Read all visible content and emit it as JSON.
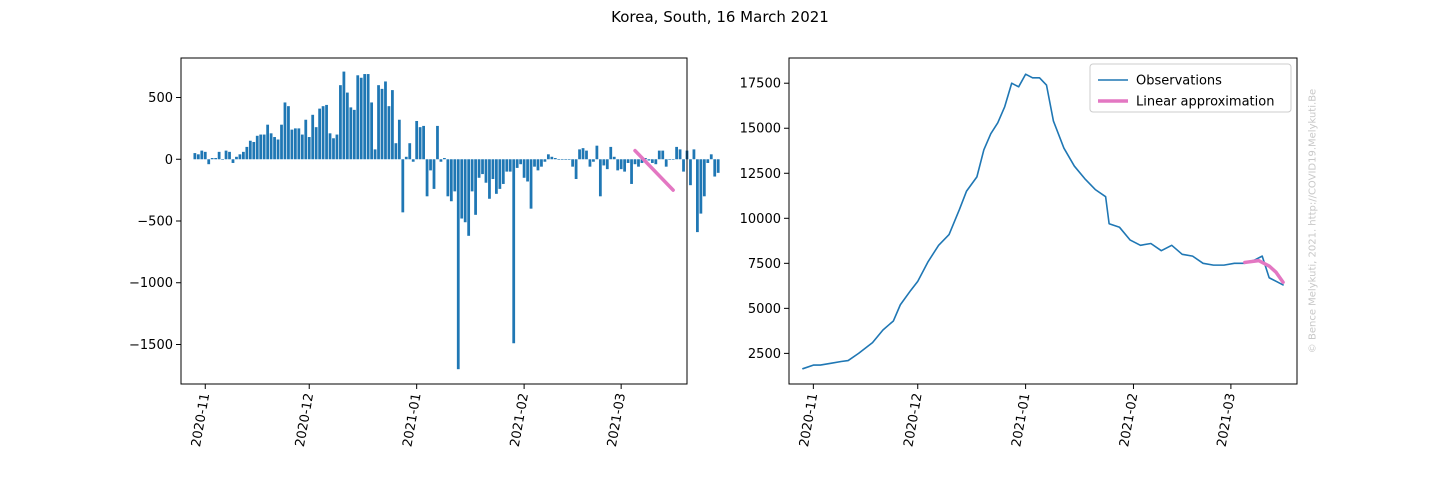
{
  "title": "Korea, South, 16 March 2021",
  "watermark": "© Bence Melykuti, 2021. http://COVID19.Melykuti.Be",
  "colors": {
    "observations": "#1f77b4",
    "approximation": "#e377c2",
    "axis": "#000000"
  },
  "chart_data": [
    {
      "type": "bar",
      "title": "",
      "xlabel": "",
      "ylabel": "",
      "x_start": "2020-10-29",
      "x_end": "2021-03-16",
      "xlim": [
        "2020-10-25",
        "2021-03-20"
      ],
      "ylim": [
        -1820,
        820
      ],
      "yticks": [
        500,
        0,
        -500,
        -1000,
        -1500
      ],
      "xticks": [
        "2020-11",
        "2020-12",
        "2021-01",
        "2021-02",
        "2021-03"
      ],
      "values": [
        50,
        40,
        70,
        60,
        -40,
        10,
        10,
        60,
        0,
        70,
        60,
        -30,
        20,
        40,
        60,
        100,
        150,
        140,
        190,
        200,
        200,
        280,
        210,
        180,
        160,
        280,
        460,
        430,
        240,
        250,
        250,
        200,
        320,
        180,
        360,
        260,
        410,
        430,
        440,
        210,
        170,
        200,
        600,
        710,
        540,
        420,
        400,
        680,
        660,
        690,
        690,
        460,
        80,
        600,
        570,
        630,
        430,
        560,
        130,
        320,
        -430,
        20,
        130,
        -20,
        310,
        260,
        270,
        -300,
        -90,
        -240,
        270,
        -20,
        10,
        -300,
        -340,
        -260,
        -1700,
        -480,
        -510,
        -620,
        -260,
        -450,
        -150,
        -120,
        -190,
        -320,
        -160,
        -280,
        -240,
        -200,
        -100,
        -100,
        -1490,
        -70,
        -40,
        -150,
        -180,
        -400,
        -60,
        -90,
        -60,
        -20,
        40,
        20,
        10,
        0,
        0,
        0,
        0,
        -60,
        -160,
        80,
        90,
        70,
        -60,
        -20,
        110,
        -300,
        -50,
        -80,
        100,
        20,
        -90,
        -80,
        -100,
        -30,
        -200,
        -40,
        -60,
        -30,
        10,
        -10,
        -30,
        -40,
        70,
        70,
        -60,
        0,
        0,
        100,
        80,
        -100,
        70,
        -210,
        80,
        -590,
        -440,
        -300,
        -30,
        40,
        -140,
        -110
      ],
      "series": [
        {
          "name": "Linear approximation",
          "x": [
            "2021-03-05",
            "2021-03-16"
          ],
          "values": [
            70,
            -250
          ]
        }
      ]
    },
    {
      "type": "line",
      "title": "",
      "xlabel": "",
      "ylabel": "",
      "xlim": [
        "2020-10-25",
        "2021-03-20"
      ],
      "ylim": [
        800,
        18900
      ],
      "yticks": [
        17500,
        15000,
        12500,
        10000,
        7500,
        5000,
        2500
      ],
      "xticks": [
        "2020-11",
        "2020-12",
        "2021-01",
        "2021-02",
        "2021-03"
      ],
      "legend": "top-right",
      "series": [
        {
          "name": "Observations",
          "x": [
            "2020-10-29",
            "2020-11-01",
            "2020-11-03",
            "2020-11-06",
            "2020-11-09",
            "2020-11-11",
            "2020-11-14",
            "2020-11-18",
            "2020-11-21",
            "2020-11-24",
            "2020-11-26",
            "2020-11-29",
            "2020-12-01",
            "2020-12-04",
            "2020-12-07",
            "2020-12-10",
            "2020-12-13",
            "2020-12-15",
            "2020-12-18",
            "2020-12-20",
            "2020-12-22",
            "2020-12-24",
            "2020-12-26",
            "2020-12-28",
            "2020-12-30",
            "2021-01-01",
            "2021-01-03",
            "2021-01-05",
            "2021-01-07",
            "2021-01-09",
            "2021-01-12",
            "2021-01-15",
            "2021-01-18",
            "2021-01-21",
            "2021-01-24",
            "2021-01-25",
            "2021-01-28",
            "2021-01-31",
            "2021-02-03",
            "2021-02-06",
            "2021-02-09",
            "2021-02-12",
            "2021-02-15",
            "2021-02-18",
            "2021-02-21",
            "2021-02-24",
            "2021-02-27",
            "2021-03-02",
            "2021-03-05",
            "2021-03-08",
            "2021-03-10",
            "2021-03-12",
            "2021-03-14",
            "2021-03-16"
          ],
          "values": [
            1650,
            1850,
            1850,
            1950,
            2050,
            2100,
            2500,
            3100,
            3800,
            4300,
            5200,
            6000,
            6500,
            7600,
            8500,
            9100,
            10500,
            11500,
            12300,
            13800,
            14700,
            15300,
            16200,
            17500,
            17300,
            18000,
            17800,
            17800,
            17400,
            15400,
            13900,
            12900,
            12200,
            11600,
            11200,
            9700,
            9500,
            8800,
            8500,
            8600,
            8200,
            8500,
            8000,
            7900,
            7500,
            7400,
            7400,
            7500,
            7500,
            7700,
            7900,
            6700,
            6500,
            6300
          ]
        },
        {
          "name": "Linear approximation",
          "x": [
            "2021-03-05",
            "2021-03-09",
            "2021-03-12",
            "2021-03-14",
            "2021-03-16"
          ],
          "values": [
            7550,
            7650,
            7350,
            7000,
            6450
          ]
        }
      ]
    }
  ]
}
